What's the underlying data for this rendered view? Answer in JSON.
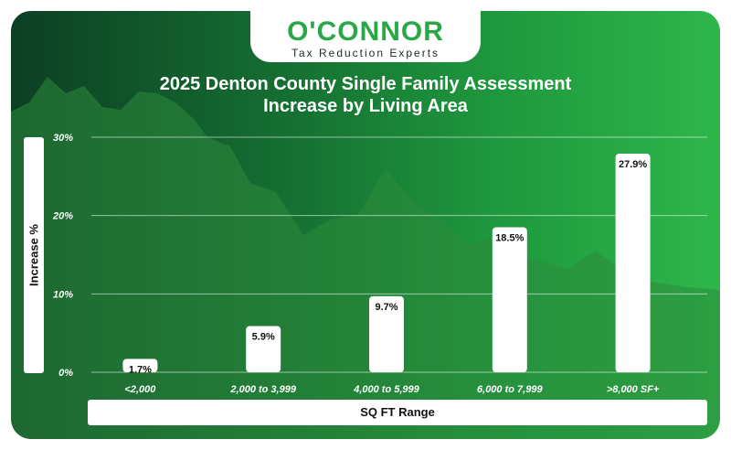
{
  "brand": {
    "name": "O'CONNOR",
    "tagline": "Tax Reduction Experts"
  },
  "colors": {
    "gradient_dark": "#0c3f24",
    "gradient_light": "#2eb64b",
    "brand_green": "#2aa847",
    "bar_fill": "#ffffff"
  },
  "chart_data": {
    "type": "bar",
    "title": "2025 Denton County Single Family Assessment\nIncrease by Living Area",
    "xlabel": "SQ FT Range",
    "ylabel": "Increase %",
    "categories": [
      "<2,000",
      "2,000 to 3,999",
      "4,000 to 5,999",
      "6,000 to 7,999",
      ">8,000 SF+"
    ],
    "values": [
      1.7,
      5.9,
      9.7,
      18.5,
      27.9
    ],
    "value_labels": [
      "1.7%",
      "5.9%",
      "9.7%",
      "18.5%",
      "27.9%"
    ],
    "ylim": [
      0,
      30
    ],
    "yticks": [
      0,
      10,
      20,
      30
    ],
    "ytick_labels": [
      "0%",
      "10%",
      "20%",
      "30%"
    ],
    "grid": true,
    "legend": "none"
  }
}
